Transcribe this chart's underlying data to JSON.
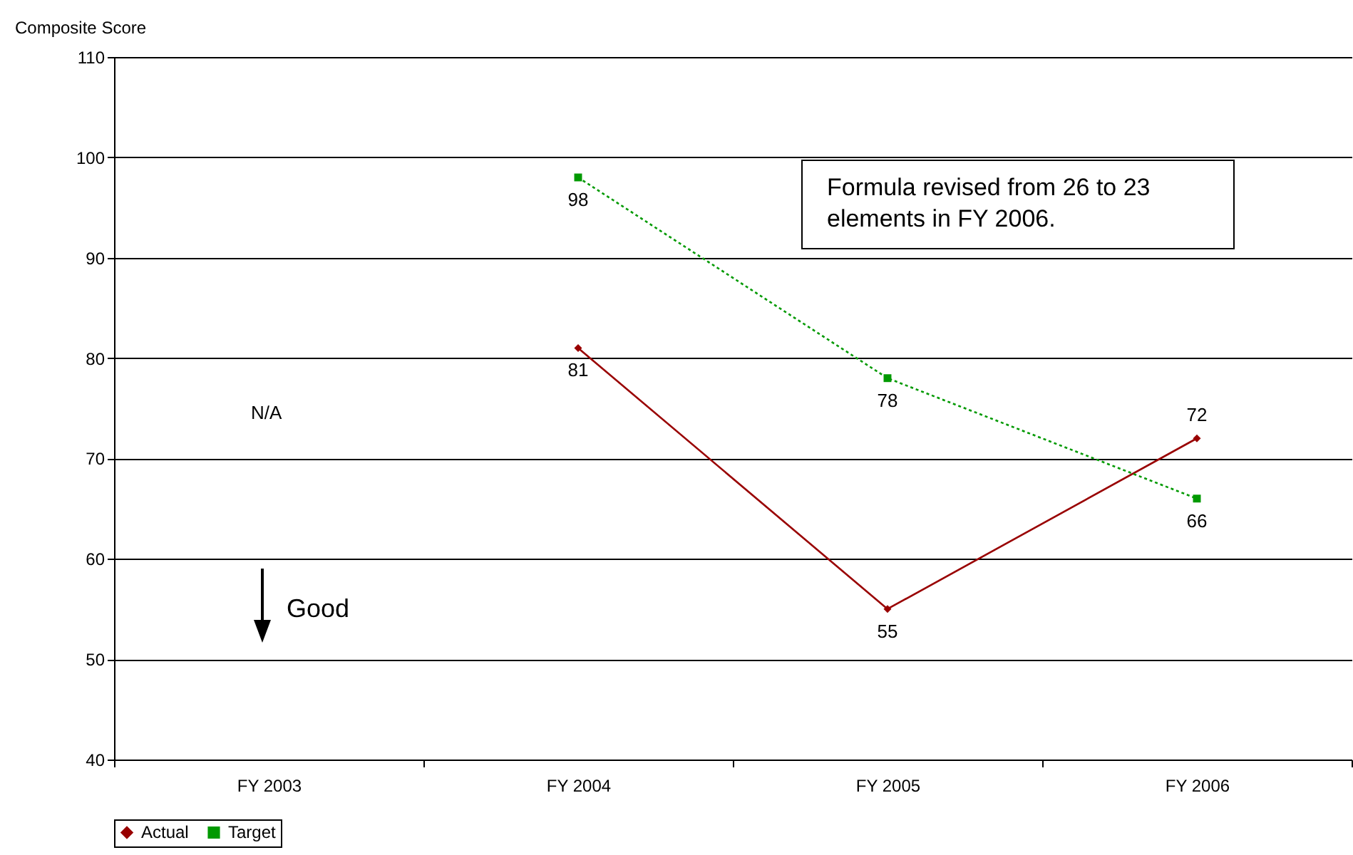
{
  "chart_data": {
    "type": "line",
    "ylabel": "Composite Score",
    "categories": [
      "FY 2003",
      "FY 2004",
      "FY 2005",
      "FY 2006"
    ],
    "series": [
      {
        "name": "Actual",
        "color": "#990000",
        "marker": "diamond",
        "line_style": "solid",
        "values": [
          null,
          81,
          55,
          72
        ]
      },
      {
        "name": "Target",
        "color": "#009900",
        "marker": "square",
        "line_style": "dotted",
        "values": [
          null,
          98,
          78,
          66
        ]
      }
    ],
    "ylim": [
      40,
      110
    ],
    "yticks": [
      40,
      50,
      60,
      70,
      80,
      90,
      100,
      110
    ],
    "grid": "y",
    "legend": "bottom",
    "data_labels": true,
    "annotations": [
      "N/A",
      "Good",
      "Formula revised from 26 to 23 elements in FY 2006."
    ]
  }
}
